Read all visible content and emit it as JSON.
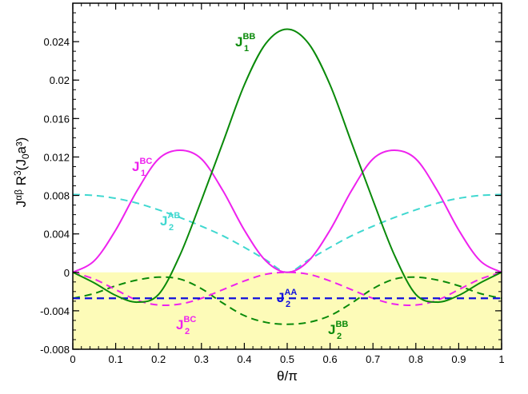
{
  "chart_data": {
    "type": "line",
    "xlabel": "θ/π",
    "ylabel": {
      "prefix": "J",
      "sup_ab": "αβ",
      "middle": " R",
      "sup_3": "3",
      "open": "(J",
      "sub_0": "0",
      "a": "a³)"
    },
    "xlim": [
      0,
      1
    ],
    "ylim": [
      -0.008,
      0.028
    ],
    "x_ticks": [
      0,
      0.1,
      0.2,
      0.3,
      0.4,
      0.5,
      0.6,
      0.7,
      0.8,
      0.9,
      1
    ],
    "x_tick_labels": [
      "0",
      "0.1",
      "0.2",
      "0.3",
      "0.4",
      "0.5",
      "0.6",
      "0.7",
      "0.8",
      "0.9",
      "1"
    ],
    "y_ticks": [
      -0.008,
      -0.004,
      0,
      0.004,
      0.008,
      0.012,
      0.016,
      0.02,
      0.024
    ],
    "y_tick_labels": [
      "-0.008",
      "-0.004",
      "0",
      "0.004",
      "0.008",
      "0.012",
      "0.016",
      "0.02",
      "0.024"
    ],
    "grid": false,
    "shaded_region": {
      "y_range": [
        -0.008,
        0
      ],
      "color": "#fdfbb8"
    },
    "x": [
      0,
      0.05,
      0.1,
      0.15,
      0.2,
      0.25,
      0.3,
      0.35,
      0.4,
      0.45,
      0.5,
      0.55,
      0.6,
      0.65,
      0.7,
      0.75,
      0.8,
      0.85,
      0.9,
      0.95,
      1
    ],
    "series": [
      {
        "name": "J1BB",
        "label": {
          "main": "J",
          "sub": "1",
          "sup": "BB"
        },
        "color": "#0a8a0a",
        "dash": "solid",
        "values": [
          0,
          -0.0011,
          -0.0024,
          -0.0031,
          -0.0023,
          0.0018,
          0.0075,
          0.0135,
          0.0195,
          0.0238,
          0.0253,
          0.0238,
          0.0195,
          0.0135,
          0.0075,
          0.0018,
          -0.0023,
          -0.0031,
          -0.0024,
          -0.0011,
          0
        ]
      },
      {
        "name": "J1BC",
        "label": {
          "main": "J",
          "sub": "1",
          "sup": "BC"
        },
        "color": "#ee22ee",
        "dash": "solid",
        "values": [
          0,
          0.0012,
          0.0044,
          0.0085,
          0.0118,
          0.0127,
          0.0118,
          0.0085,
          0.0044,
          0.0012,
          0,
          0.0012,
          0.0044,
          0.0085,
          0.0118,
          0.0127,
          0.0118,
          0.0085,
          0.0044,
          0.0012,
          0
        ]
      },
      {
        "name": "J2AB",
        "label": {
          "main": "J",
          "sub": "2",
          "sup": "AB"
        },
        "color": "#40d8d0",
        "dash": "dashed",
        "values": [
          0.0081,
          0.008,
          0.0077,
          0.0072,
          0.0065,
          0.0057,
          0.0048,
          0.0038,
          0.0026,
          0.0013,
          0,
          0.0013,
          0.0026,
          0.0038,
          0.0048,
          0.0057,
          0.0065,
          0.0072,
          0.0077,
          0.008,
          0.0081
        ]
      },
      {
        "name": "J2AA",
        "label": {
          "main": "J",
          "sub": "2",
          "sup": "AA"
        },
        "color": "#1010dd",
        "dash": "dashed",
        "values": [
          -0.0027,
          -0.0027,
          -0.0027,
          -0.0027,
          -0.0027,
          -0.0027,
          -0.0027,
          -0.0027,
          -0.0027,
          -0.0027,
          -0.0027,
          -0.0027,
          -0.0027,
          -0.0027,
          -0.0027,
          -0.0027,
          -0.0027,
          -0.0027,
          -0.0027,
          -0.0027,
          -0.0027
        ]
      },
      {
        "name": "J2BC",
        "label": {
          "main": "J",
          "sub": "2",
          "sup": "BC"
        },
        "color": "#ee22ee",
        "dash": "dashed",
        "values": [
          0,
          -0.0007,
          -0.0018,
          -0.0029,
          -0.0034,
          -0.0033,
          -0.0027,
          -0.0018,
          -0.0009,
          -0.0002,
          0,
          -0.0002,
          -0.0009,
          -0.0018,
          -0.0027,
          -0.0033,
          -0.0034,
          -0.0029,
          -0.0018,
          -0.0007,
          0
        ]
      },
      {
        "name": "J2BB",
        "label": {
          "main": "J",
          "sub": "2",
          "sup": "BB"
        },
        "color": "#0a8a0a",
        "dash": "dashed",
        "values": [
          -0.0027,
          -0.0022,
          -0.0014,
          -0.0008,
          -0.0005,
          -0.0007,
          -0.0017,
          -0.0032,
          -0.0045,
          -0.0052,
          -0.0054,
          -0.0052,
          -0.0045,
          -0.0032,
          -0.0017,
          -0.0007,
          -0.0005,
          -0.0008,
          -0.0014,
          -0.0022,
          -0.0027
        ]
      }
    ]
  }
}
